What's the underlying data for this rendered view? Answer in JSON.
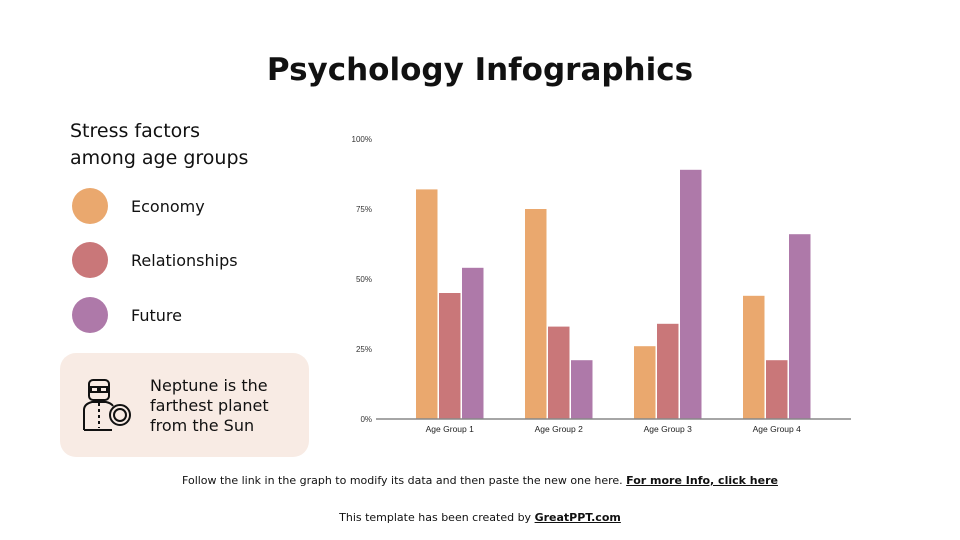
{
  "title": "Psychology Infographics",
  "subtitle_lines": [
    "Stress factors",
    "among age groups"
  ],
  "legend": [
    {
      "label": "Economy",
      "color": "#eaa86e"
    },
    {
      "label": "Relationships",
      "color": "#c97779"
    },
    {
      "label": "Future",
      "color": "#ae79a9"
    }
  ],
  "card": {
    "icon": "doctor-with-smiley-icon",
    "lines": [
      "Neptune is the",
      "farthest planet",
      "from the Sun"
    ]
  },
  "footer": {
    "text": "Follow the link in the graph to modify its data and then paste the new one here.",
    "link": "For more Info, click here",
    "credit": "This template has been created by",
    "credit_link": "GreatPPT.com"
  },
  "chart_data": {
    "type": "bar",
    "categories": [
      "Age Group 1",
      "Age Group 2",
      "Age Group 3",
      "Age Group 4"
    ],
    "series": [
      {
        "name": "Economy",
        "color": "#eaa86e",
        "values": [
          82,
          75,
          26,
          44
        ]
      },
      {
        "name": "Relationships",
        "color": "#c97779",
        "values": [
          45,
          33,
          34,
          21
        ]
      },
      {
        "name": "Future",
        "color": "#ae79a9",
        "values": [
          54,
          21,
          89,
          66
        ]
      }
    ],
    "yticks": [
      "0%",
      "25%",
      "50%",
      "75%",
      "100%"
    ],
    "ylim": [
      0,
      100
    ],
    "grid": false
  }
}
